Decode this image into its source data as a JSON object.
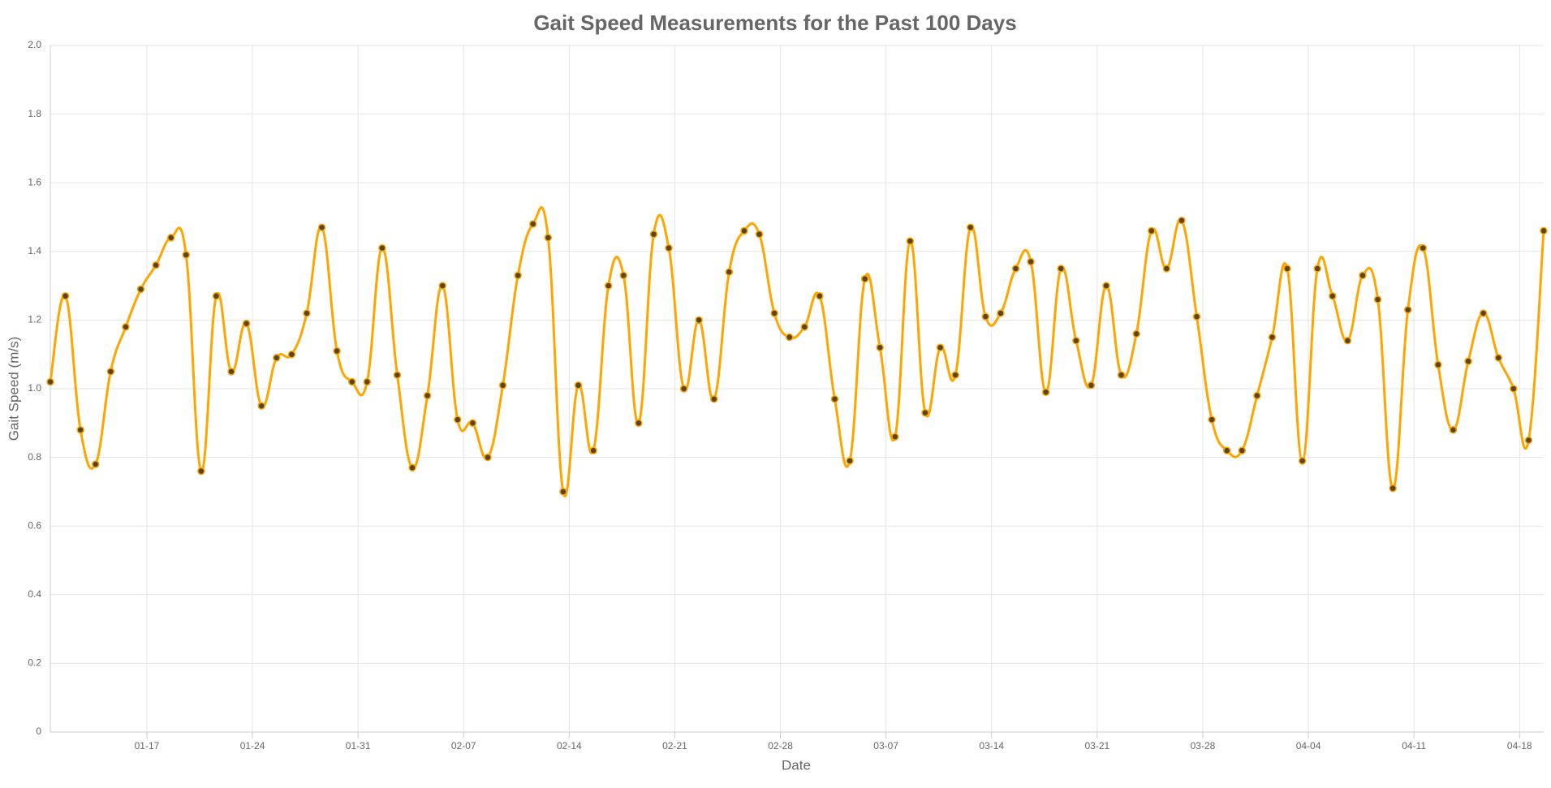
{
  "chart_data": {
    "type": "line",
    "title": "Gait Speed Measurements for the Past 100 Days",
    "xlabel": "Date",
    "ylabel": "Gait Speed (m/s)",
    "x": [
      "01-10",
      "01-11",
      "01-12",
      "01-13",
      "01-14",
      "01-15",
      "01-16",
      "01-17",
      "01-18",
      "01-19",
      "01-20",
      "01-21",
      "01-22",
      "01-23",
      "01-24",
      "01-25",
      "01-26",
      "01-27",
      "01-28",
      "01-29",
      "01-30",
      "01-31",
      "02-01",
      "02-02",
      "02-03",
      "02-04",
      "02-05",
      "02-06",
      "02-07",
      "02-08",
      "02-09",
      "02-10",
      "02-11",
      "02-12",
      "02-13",
      "02-14",
      "02-15",
      "02-16",
      "02-17",
      "02-18",
      "02-19",
      "02-20",
      "02-21",
      "02-22",
      "02-23",
      "02-24",
      "02-25",
      "02-26",
      "02-27",
      "02-28",
      "03-01",
      "03-02",
      "03-03",
      "03-04",
      "03-05",
      "03-06",
      "03-07",
      "03-08",
      "03-09",
      "03-10",
      "03-11",
      "03-12",
      "03-13",
      "03-14",
      "03-15",
      "03-16",
      "03-17",
      "03-18",
      "03-19",
      "03-20",
      "03-21",
      "03-22",
      "03-23",
      "03-24",
      "03-25",
      "03-26",
      "03-27",
      "03-28",
      "03-29",
      "03-30",
      "03-31",
      "04-01",
      "04-02",
      "04-03",
      "04-04",
      "04-05",
      "04-06",
      "04-07",
      "04-08",
      "04-09",
      "04-10",
      "04-11",
      "04-12",
      "04-13",
      "04-14",
      "04-15",
      "04-16",
      "04-17",
      "04-18",
      "04-19"
    ],
    "series": [
      {
        "name": "Gait Speed (m/s)",
        "color": "#ffa500",
        "values": [
          1.02,
          1.27,
          0.88,
          0.78,
          1.05,
          1.18,
          1.29,
          1.36,
          1.44,
          1.39,
          0.76,
          1.27,
          1.05,
          1.19,
          0.95,
          1.09,
          1.1,
          1.22,
          1.47,
          1.11,
          1.02,
          1.02,
          1.41,
          1.04,
          0.77,
          0.98,
          1.3,
          0.91,
          0.9,
          0.8,
          1.01,
          1.33,
          1.48,
          1.44,
          0.7,
          1.01,
          0.82,
          1.3,
          1.33,
          0.9,
          1.45,
          1.41,
          1.0,
          1.2,
          0.97,
          1.34,
          1.46,
          1.45,
          1.22,
          1.15,
          1.18,
          1.27,
          0.97,
          0.79,
          1.32,
          1.12,
          0.86,
          1.43,
          0.93,
          1.12,
          1.04,
          1.47,
          1.21,
          1.22,
          1.35,
          1.37,
          0.99,
          1.35,
          1.14,
          1.01,
          1.3,
          1.04,
          1.16,
          1.46,
          1.35,
          1.49,
          1.21,
          0.91,
          0.82,
          0.82,
          0.98,
          1.15,
          1.35,
          0.79,
          1.35,
          1.27,
          1.14,
          1.33,
          1.26,
          0.71,
          1.23,
          1.41,
          1.07,
          0.88,
          1.08,
          1.22,
          1.09,
          1.0,
          0.85,
          1.46
        ]
      }
    ],
    "xticks": [
      "01-17",
      "01-24",
      "01-31",
      "02-07",
      "02-14",
      "02-21",
      "02-28",
      "03-07",
      "03-14",
      "03-21",
      "03-28",
      "04-04",
      "04-11",
      "04-18"
    ],
    "ylim": [
      0,
      2
    ],
    "yticks": [
      0,
      0.2,
      0.4,
      0.6,
      0.8,
      {
        "value": 1,
        "label": "1.0"
      },
      1.2,
      1.4,
      1.6,
      1.8,
      {
        "value": 2,
        "label": "2.0"
      }
    ],
    "grid": true
  }
}
